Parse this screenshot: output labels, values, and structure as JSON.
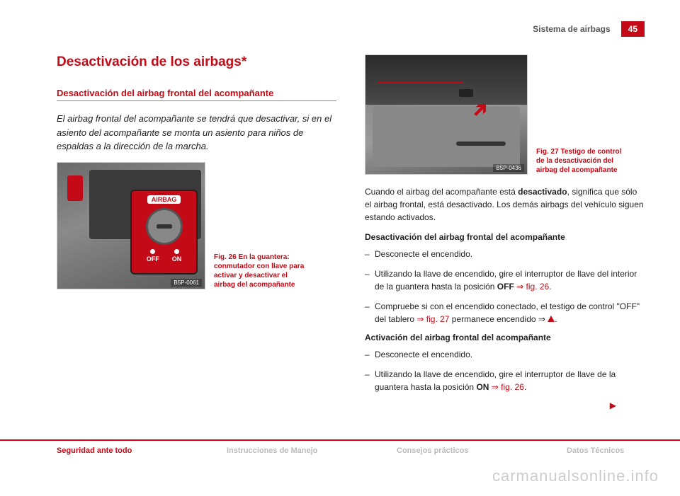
{
  "header": {
    "section": "Sistema de airbags",
    "page": "45"
  },
  "title": "Desactivación de los airbags*",
  "subtitle": "Desactivación del airbag frontal del acompañante",
  "intro": "El airbag frontal del acompañante se tendrá que desactivar, si en el asiento del acompañante se monta un asiento para niños de espaldas a la dirección de la marcha.",
  "fig26": {
    "code": "B5P-0061",
    "caption": "Fig. 26  En la guantera: conmutador con llave para activar y desactivar el airbag del acompañante",
    "airbag_label": "AIRBAG",
    "off": "OFF",
    "on": "ON"
  },
  "fig27": {
    "code": "B5P-0436",
    "caption": "Fig. 27  Testigo de control de la desactivación del airbag del acompañante"
  },
  "para1_a": "Cuando el airbag del acompañante está ",
  "para1_b": "desactivado",
  "para1_c": ", significa que sólo el airbag frontal, está desactivado. Los demás airbags del vehículo siguen estando activados.",
  "deact_head": "Desactivación del airbag frontal del acompañante",
  "deact_steps": {
    "s1": "Desconecte el encendido.",
    "s2_a": "Utilizando la llave de encendido, gire el interruptor de llave del interior de la guantera hasta la posición ",
    "s2_off": "OFF",
    "s2_ref": " ⇒ fig. 26",
    "s2_end": ".",
    "s3_a": "Compruebe si con el encendido conectado, el testigo de control \"OFF\" del tablero ",
    "s3_ref": "⇒ fig. 27",
    "s3_b": " permanece encendido ⇒ ",
    "s3_end": "."
  },
  "act_head": "Activación del airbag frontal del acompañante",
  "act_steps": {
    "s1": "Desconecte el encendido.",
    "s2_a": "Utilizando la llave de encendido, gire el interruptor de llave de la guantera hasta la posición ",
    "s2_on": "ON",
    "s2_ref": " ⇒ fig. 26",
    "s2_end": "."
  },
  "footer": {
    "a": "Seguridad ante todo",
    "b": "Instrucciones de Manejo",
    "c": "Consejos prácticos",
    "d": "Datos Técnicos"
  },
  "watermark": "carmanualsonline.info"
}
